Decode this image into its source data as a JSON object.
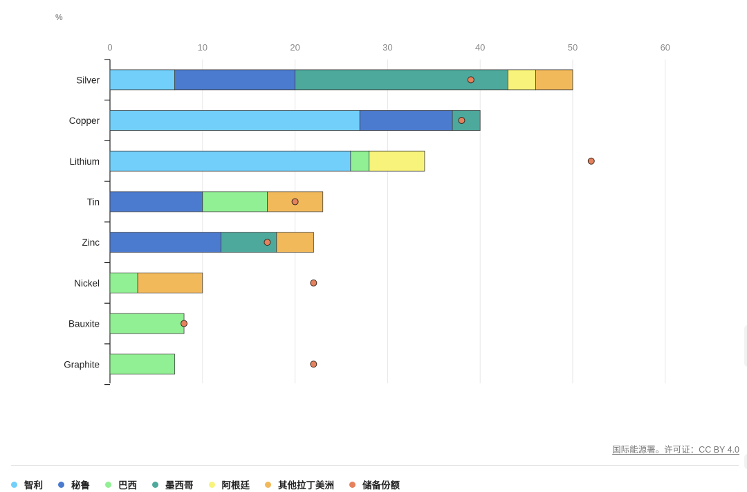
{
  "chart_data": {
    "type": "bar",
    "orientation": "horizontal",
    "stacked": true,
    "unit": "%",
    "categories": [
      "Silver",
      "Copper",
      "Lithium",
      "Tin",
      "Zinc",
      "Nickel",
      "Bauxite",
      "Graphite"
    ],
    "series": [
      {
        "name": "智利",
        "color": "#72cffa",
        "values": [
          7,
          27,
          26,
          0,
          0,
          0,
          0,
          0
        ]
      },
      {
        "name": "秘鲁",
        "color": "#4b7bcf",
        "values": [
          13,
          10,
          0,
          10,
          12,
          0,
          0,
          0
        ]
      },
      {
        "name": "巴西",
        "color": "#90f093",
        "values": [
          0,
          0,
          2,
          7,
          0,
          3,
          8,
          7
        ]
      },
      {
        "name": "墨西哥",
        "color": "#4da99c",
        "values": [
          23,
          3,
          0,
          0,
          6,
          0,
          0,
          0
        ]
      },
      {
        "name": "阿根廷",
        "color": "#f8f37a",
        "values": [
          3,
          0,
          6,
          0,
          0,
          0,
          0,
          0
        ]
      },
      {
        "name": "其他拉丁美洲",
        "color": "#f2b95a",
        "values": [
          4,
          0,
          0,
          6,
          4,
          7,
          0,
          0
        ]
      }
    ],
    "markers": {
      "name": "储备份额",
      "color": "#e5825d",
      "values": [
        39,
        38,
        52,
        20,
        17,
        22,
        8,
        22
      ]
    },
    "xlim": [
      0,
      60
    ],
    "xticks": [
      0,
      10,
      20,
      30,
      40,
      50,
      60
    ],
    "grid": true,
    "legend_position": "bottom"
  },
  "source": "国际能源署。许可证：CC BY 4.0"
}
